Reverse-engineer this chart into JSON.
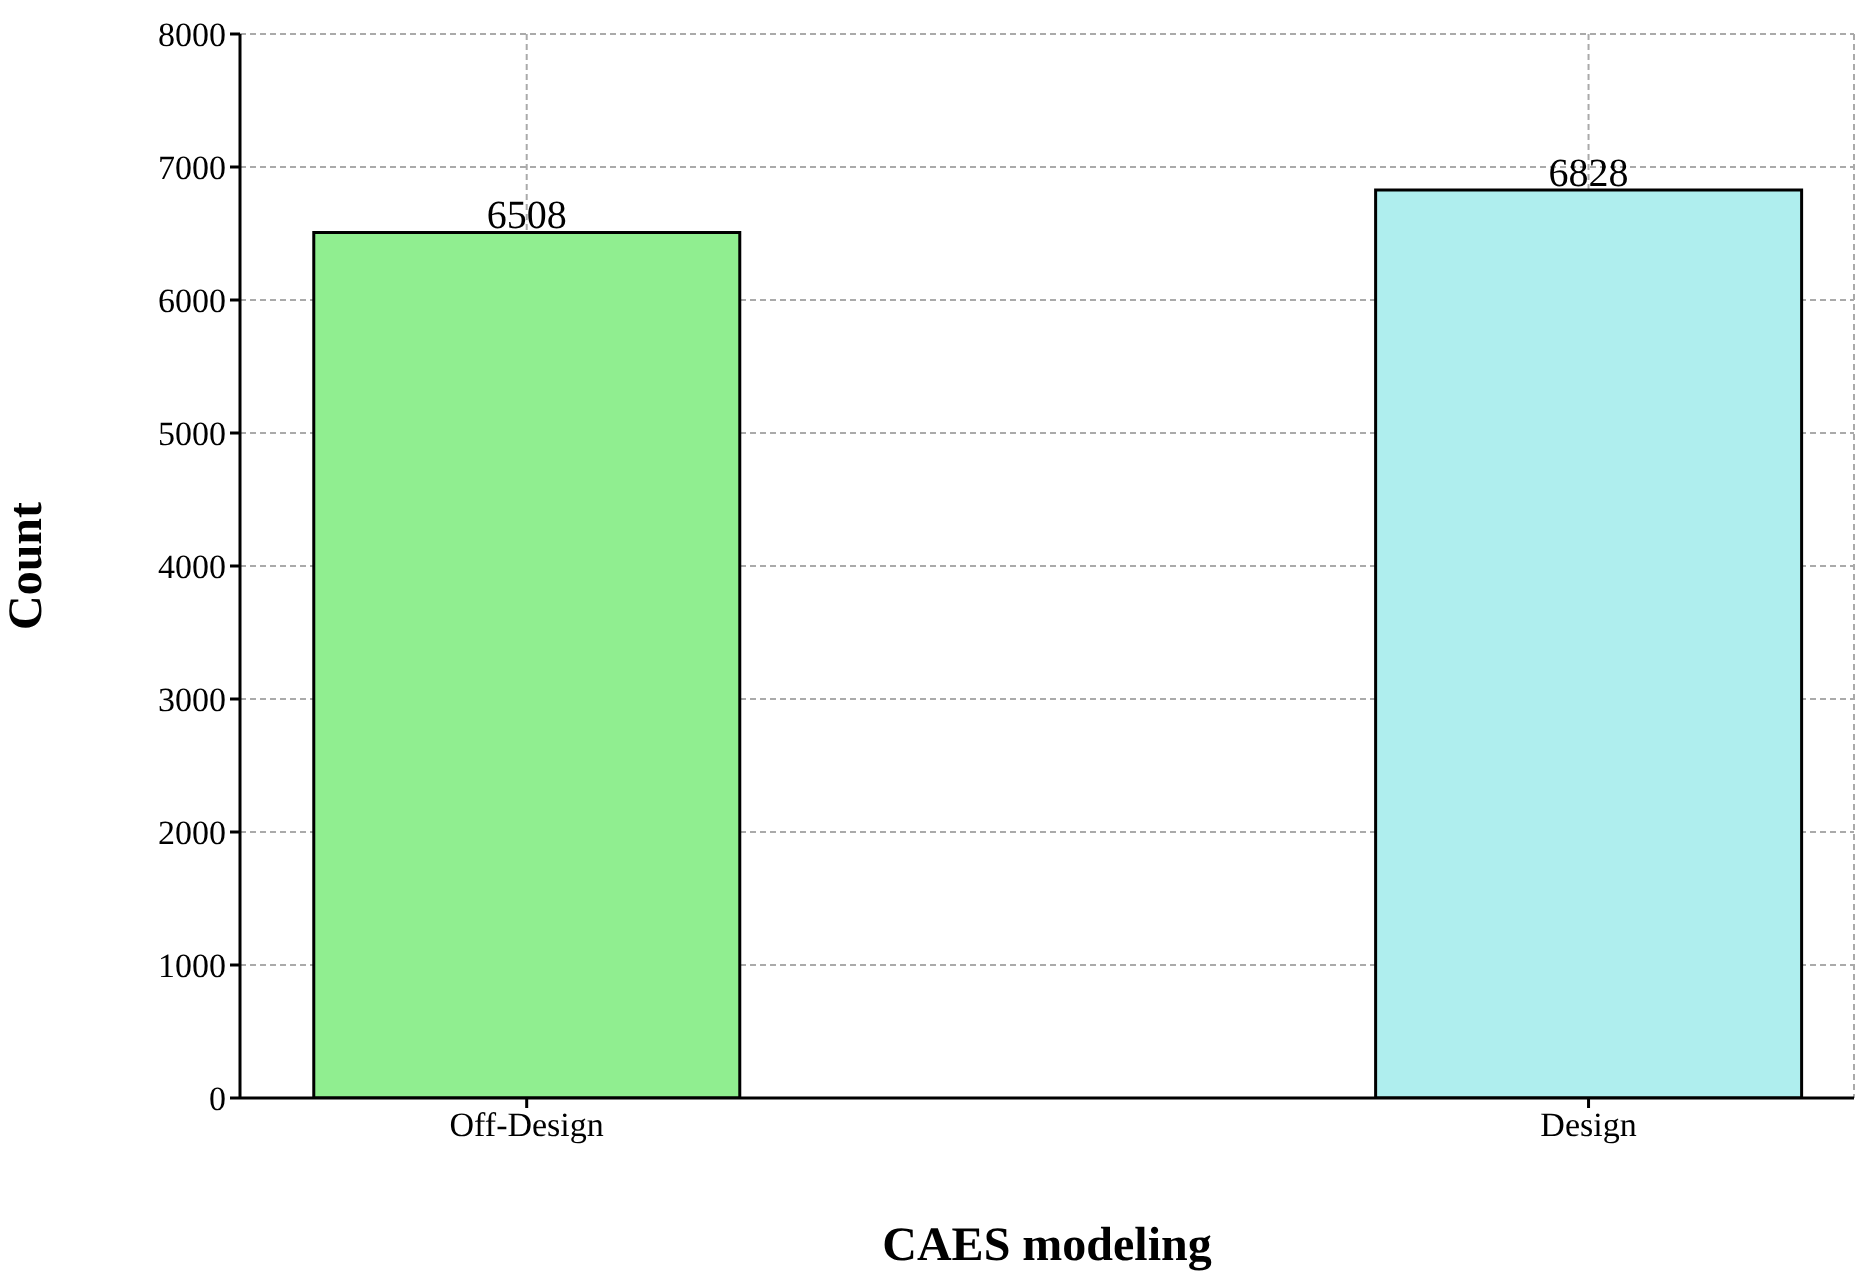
{
  "chart_data": {
    "type": "bar",
    "xlabel": "CAES modeling",
    "ylabel": "Count",
    "categories": [
      "Off-Design",
      "Design"
    ],
    "values": [
      6508,
      6828
    ],
    "colors": [
      "#90ee90",
      "#afeeee"
    ],
    "ylim": [
      0,
      8000
    ],
    "yticks": [
      0,
      1000,
      2000,
      3000,
      4000,
      5000,
      6000,
      7000,
      8000
    ],
    "grid": true,
    "data_labels": true
  }
}
